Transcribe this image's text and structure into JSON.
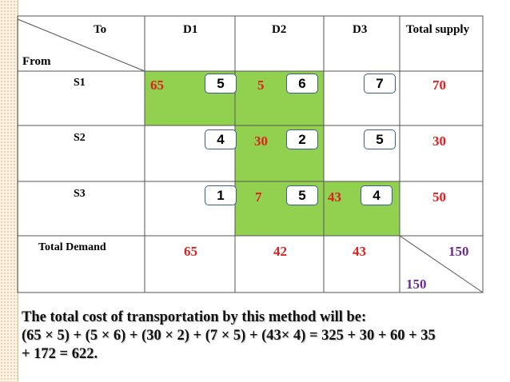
{
  "table": {
    "header": {
      "to": "To",
      "from": "From",
      "cols": [
        "D1",
        "D2",
        "D3"
      ],
      "supply": "Total supply"
    },
    "rows": [
      {
        "label": "S1",
        "costs": [
          "5",
          "6",
          "7"
        ],
        "alloc": [
          "65",
          "5",
          ""
        ],
        "supply": "70"
      },
      {
        "label": "S2",
        "costs": [
          "4",
          "2",
          "5"
        ],
        "alloc": [
          "",
          "30",
          ""
        ],
        "supply": "30"
      },
      {
        "label": "S3",
        "costs": [
          "1",
          "5",
          "4"
        ],
        "alloc": [
          "",
          "7",
          "43"
        ],
        "supply": "50"
      }
    ],
    "demand": {
      "label": "Total Demand",
      "values": [
        "65",
        "42",
        "43"
      ],
      "total_supply": "150",
      "total_demand": "150"
    }
  },
  "summary": {
    "line1": "The total cost of transportation by this method will be:",
    "line2": "(65 × 5) + (5 × 6) + (30 × 2) + (7 × 5) + (43× 4) = 325 + 30 + 60 + 35",
    "line3": "+ 172 = 622."
  },
  "colors": {
    "allocated_cell": "#92d050",
    "allocation_text": "#e02020",
    "total_text": "#6a2c91",
    "cost_box_border": "#3a5f8f"
  }
}
